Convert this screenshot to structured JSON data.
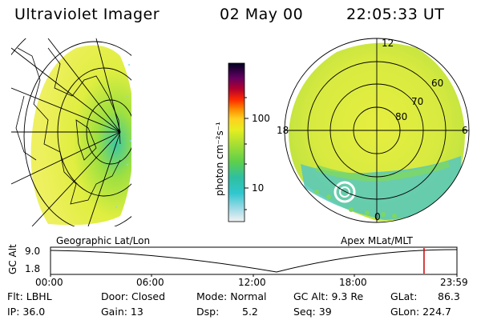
{
  "header": {
    "instrument": "Ultraviolet Imager",
    "date": "02 May 00",
    "time": "22:05:33 UT"
  },
  "panels": {
    "left_caption": "Geographic Lat/Lon",
    "right_caption": "Apex MLat/MLT"
  },
  "colorbar": {
    "unit_label": "photon cm⁻²s⁻¹",
    "ticks": [
      "100",
      "10"
    ],
    "scale": "log"
  },
  "polar_plot": {
    "mlt_labels": [
      "12",
      "18",
      "6",
      "0"
    ],
    "mlat_labels": [
      "60",
      "70",
      "80"
    ]
  },
  "altitude_plot": {
    "ylabel": "GC Alt",
    "y_ticks": [
      "9.0",
      "1.8"
    ],
    "x_ticks": [
      "00:00",
      "06:00",
      "12:00",
      "18:00",
      "23:59"
    ],
    "current_time_fraction": 0.919,
    "marker_color": "#cc0000"
  },
  "info": {
    "filter": "Flt: LBHL",
    "ip": "IP: 36.0",
    "door": "Door: Closed",
    "gain": "Gain: 13",
    "mode": "Mode: Normal",
    "dsp": "Dsp:",
    "dsp_value": "5.2",
    "gc_alt": "GC Alt: 9.3 Re",
    "seq": "Seq: 39",
    "glat": "GLat:",
    "glat_value": "86.3",
    "glon": "GLon: 224.7"
  }
}
